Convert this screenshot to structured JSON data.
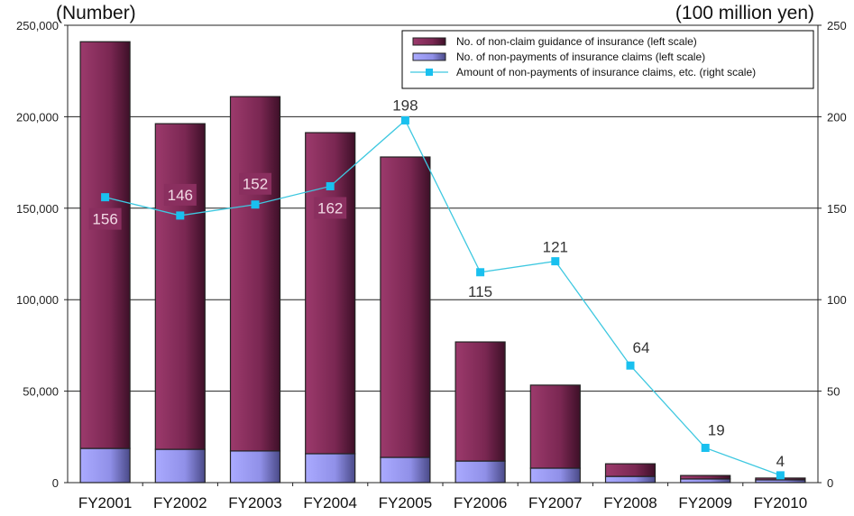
{
  "chart_data": {
    "type": "bar",
    "stacked": true,
    "title": "",
    "left_axis_label": "(Number)",
    "right_axis_label": "(100 million yen)",
    "categories": [
      "FY2001",
      "FY2002",
      "FY2003",
      "FY2004",
      "FY2005",
      "FY2006",
      "FY2007",
      "FY2008",
      "FY2009",
      "FY2010"
    ],
    "left_ylim": [
      0,
      250000
    ],
    "left_ticks": [
      "0",
      "50,000",
      "100,000",
      "150,000",
      "200,000",
      "250,000"
    ],
    "right_ylim": [
      0,
      250
    ],
    "right_ticks": [
      "0",
      "50",
      "100",
      "150",
      "200",
      "250"
    ],
    "grid": "horizontal",
    "legend_placement": "top-right",
    "series": [
      {
        "name": "No. of non-payments of insurance claims (left scale)",
        "type": "bar",
        "axis": "left",
        "color": "#9a9af0",
        "values": [
          18700,
          18200,
          17300,
          15800,
          13800,
          11800,
          7900,
          3400,
          2000,
          1500
        ]
      },
      {
        "name": "No. of non-claim guidance of insurance (left scale)",
        "type": "bar",
        "axis": "left",
        "color": "#8a2f5f",
        "values": [
          222300,
          178000,
          193700,
          175500,
          164200,
          65100,
          45400,
          6900,
          1900,
          1000
        ]
      },
      {
        "name": "Amount of non-payments of insurance claims, etc. (right scale)",
        "type": "line",
        "axis": "right",
        "color": "#3ec8e0",
        "values": [
          156,
          146,
          152,
          162,
          198,
          115,
          121,
          64,
          19,
          4
        ],
        "labels": [
          "156",
          "146",
          "152",
          "162",
          "198",
          "115",
          "121",
          "64",
          "19",
          "4"
        ]
      }
    ]
  }
}
